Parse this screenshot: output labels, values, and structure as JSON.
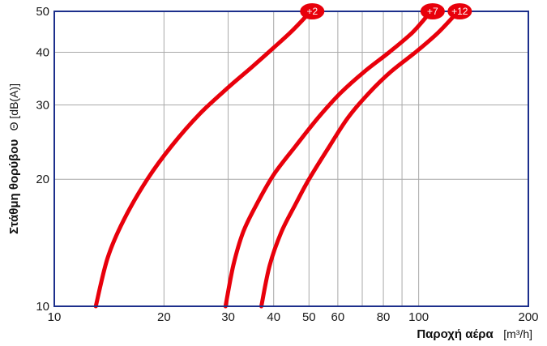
{
  "chart_data": {
    "type": "line",
    "x_scale": "log",
    "y_scale": "log",
    "xlim": [
      10,
      200
    ],
    "ylim": [
      10,
      50
    ],
    "x_ticks": [
      10,
      20,
      30,
      40,
      50,
      60,
      80,
      100,
      200
    ],
    "x_tick_labels": [
      "10",
      "20",
      "30",
      "40",
      "50",
      "60",
      "80",
      "100",
      "200"
    ],
    "x_minor_gridlines": [
      70,
      90
    ],
    "y_ticks": [
      10,
      20,
      30,
      40,
      50
    ],
    "y_tick_labels": [
      "10",
      "20",
      "30",
      "40",
      "50"
    ],
    "grid": true,
    "xlabel": "Παροχή αέρα",
    "xlabel_unit": "[m³/h]",
    "ylabel": "Στάθμη θορύβου",
    "ylabel_unit": "Θ [dB(A)]",
    "series": [
      {
        "label": "+2",
        "x": [
          13,
          14,
          15.5,
          18,
          21,
          25,
          30,
          35,
          40,
          45,
          50
        ],
        "y": [
          10,
          13,
          16,
          20,
          24,
          28.5,
          33,
          37,
          41,
          45,
          49.5
        ]
      },
      {
        "label": "+7",
        "x": [
          29.5,
          31,
          33,
          36,
          40,
          46,
          53,
          61,
          71,
          83,
          96,
          107
        ],
        "y": [
          10,
          12.5,
          15,
          17.5,
          20.5,
          24,
          28,
          32,
          36,
          40,
          44.5,
          49.5
        ]
      },
      {
        "label": "+12",
        "x": [
          37,
          39,
          42,
          46,
          50,
          57,
          64,
          73,
          84,
          98,
          113,
          127
        ],
        "y": [
          10,
          12.5,
          15,
          17.5,
          20,
          24,
          28,
          32,
          36,
          40,
          44.5,
          49.5
        ]
      }
    ],
    "colors": {
      "line": "#e8000b",
      "badge": "#e8000b",
      "grid": "#a9a9a9",
      "frame": "#1c2f8c",
      "text": "#1a1a1a"
    }
  }
}
